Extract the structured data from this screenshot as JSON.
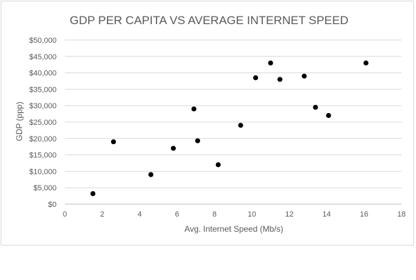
{
  "chart_data": {
    "type": "scatter",
    "title": "GDP PER CAPITA VS AVERAGE INTERNET SPEED",
    "xlabel": "Avg. Internet Speed (Mb/s)",
    "ylabel": "GDP (ppp)",
    "xlim": [
      0,
      18
    ],
    "ylim": [
      0,
      50000
    ],
    "x_ticks": [
      "0",
      "2",
      "4",
      "6",
      "8",
      "10",
      "12",
      "14",
      "16",
      "18"
    ],
    "y_ticks": [
      "$0",
      "$5,000",
      "$10,000",
      "$15,000",
      "$20,000",
      "$25,000",
      "$30,000",
      "$35,000",
      "$40,000",
      "$45,000",
      "$50,000"
    ],
    "grid": "horizontal",
    "legend": "none",
    "marker_color": "#000000",
    "points": [
      {
        "x": 1.5,
        "y": 3200
      },
      {
        "x": 2.6,
        "y": 19000
      },
      {
        "x": 4.6,
        "y": 9000
      },
      {
        "x": 5.8,
        "y": 17000
      },
      {
        "x": 6.9,
        "y": 29000
      },
      {
        "x": 7.1,
        "y": 19300
      },
      {
        "x": 8.2,
        "y": 12000
      },
      {
        "x": 9.4,
        "y": 24000
      },
      {
        "x": 10.2,
        "y": 38500
      },
      {
        "x": 11.0,
        "y": 43000
      },
      {
        "x": 11.5,
        "y": 38000
      },
      {
        "x": 12.8,
        "y": 39000
      },
      {
        "x": 13.4,
        "y": 29500
      },
      {
        "x": 14.1,
        "y": 27000
      },
      {
        "x": 16.1,
        "y": 43000
      }
    ]
  }
}
